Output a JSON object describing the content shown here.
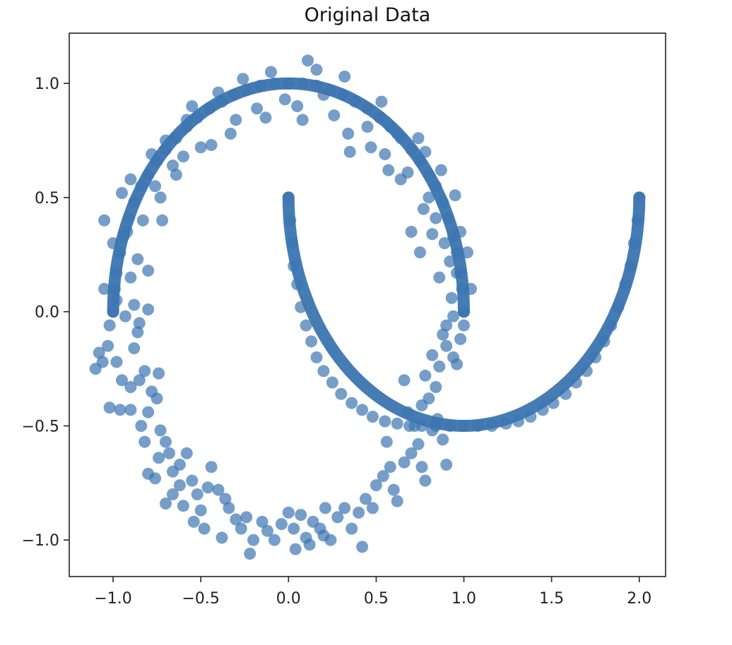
{
  "chart_data": {
    "type": "scatter",
    "title": "Original Data",
    "xlabel": "",
    "ylabel": "",
    "xlim": [
      -1.25,
      2.15
    ],
    "ylim": [
      -1.16,
      1.22
    ],
    "x_ticks": [
      -1.0,
      -0.5,
      0.0,
      0.5,
      1.0,
      1.5,
      2.0
    ],
    "y_ticks": [
      -1.0,
      -0.5,
      0.0,
      0.5,
      1.0
    ],
    "x_tick_labels": [
      "−1.0",
      "−0.5",
      "0.0",
      "0.5",
      "1.0",
      "1.5",
      "2.0"
    ],
    "y_tick_labels": [
      "−1.0",
      "−0.5",
      "0.0",
      "0.5",
      "1.0"
    ],
    "grid": false,
    "legend": "none",
    "point_color": "#3c75b0",
    "point_alpha": 0.7,
    "series": [
      {
        "description_of_points": "",
        "points": [
          [
            -1.0,
            0.0
          ],
          [
            -0.99,
            0.1
          ],
          [
            -0.98,
            0.17
          ],
          [
            -0.96,
            0.26
          ],
          [
            -0.94,
            0.33
          ],
          [
            -0.91,
            0.41
          ],
          [
            -0.88,
            0.48
          ],
          [
            -0.84,
            0.55
          ],
          [
            -0.8,
            0.6
          ],
          [
            -0.75,
            0.66
          ],
          [
            -0.7,
            0.71
          ],
          [
            -0.64,
            0.76
          ],
          [
            -0.58,
            0.81
          ],
          [
            -0.52,
            0.85
          ],
          [
            -0.45,
            0.89
          ],
          [
            -0.38,
            0.92
          ],
          [
            -0.31,
            0.95
          ],
          [
            -0.24,
            0.97
          ],
          [
            -0.16,
            0.99
          ],
          [
            -0.08,
            1.0
          ],
          [
            0.0,
            1.0
          ],
          [
            0.08,
            1.0
          ],
          [
            0.16,
            0.99
          ],
          [
            0.24,
            0.97
          ],
          [
            0.31,
            0.95
          ],
          [
            0.38,
            0.92
          ],
          [
            0.45,
            0.89
          ],
          [
            0.52,
            0.85
          ],
          [
            0.58,
            0.81
          ],
          [
            0.64,
            0.76
          ],
          [
            0.7,
            0.71
          ],
          [
            0.75,
            0.66
          ],
          [
            0.8,
            0.6
          ],
          [
            0.84,
            0.55
          ],
          [
            0.88,
            0.48
          ],
          [
            0.91,
            0.41
          ],
          [
            0.94,
            0.33
          ],
          [
            0.96,
            0.26
          ],
          [
            0.98,
            0.17
          ],
          [
            0.99,
            0.1
          ],
          [
            1.0,
            0.0
          ],
          [
            -1.05,
            0.4
          ],
          [
            -1.0,
            0.3
          ],
          [
            -0.95,
            0.52
          ],
          [
            -0.9,
            0.58
          ],
          [
            -0.83,
            0.4
          ],
          [
            -0.86,
            0.23
          ],
          [
            -0.8,
            0.18
          ],
          [
            -0.78,
            0.69
          ],
          [
            -0.72,
            0.4
          ],
          [
            -0.7,
            0.75
          ],
          [
            -0.66,
            0.64
          ],
          [
            -0.6,
            0.68
          ],
          [
            -0.55,
            0.9
          ],
          [
            -0.5,
            0.72
          ],
          [
            -0.44,
            0.73
          ],
          [
            -0.4,
            0.96
          ],
          [
            -0.33,
            0.78
          ],
          [
            -0.3,
            0.84
          ],
          [
            -0.26,
            1.02
          ],
          [
            -0.18,
            0.89
          ],
          [
            -0.13,
            0.85
          ],
          [
            -0.1,
            1.05
          ],
          [
            -0.02,
            0.93
          ],
          [
            0.05,
            0.9
          ],
          [
            0.08,
            0.84
          ],
          [
            0.11,
            1.1
          ],
          [
            0.16,
            1.06
          ],
          [
            0.2,
            0.95
          ],
          [
            0.26,
            0.86
          ],
          [
            0.32,
            1.03
          ],
          [
            0.34,
            0.78
          ],
          [
            0.35,
            0.7
          ],
          [
            0.45,
            0.81
          ],
          [
            0.47,
            0.72
          ],
          [
            0.53,
            0.92
          ],
          [
            0.55,
            0.69
          ],
          [
            0.57,
            0.62
          ],
          [
            0.62,
            0.78
          ],
          [
            0.64,
            0.58
          ],
          [
            0.68,
            0.61
          ],
          [
            0.74,
            0.76
          ],
          [
            0.78,
            0.7
          ],
          [
            0.8,
            0.5
          ],
          [
            0.84,
            0.41
          ],
          [
            0.87,
            0.62
          ],
          [
            0.89,
            0.3
          ],
          [
            0.92,
            0.22
          ],
          [
            0.95,
            0.51
          ],
          [
            0.93,
            0.06
          ],
          [
            0.96,
            0.17
          ],
          [
            0.98,
            0.35
          ],
          [
            1.02,
            0.26
          ],
          [
            1.04,
            0.1
          ],
          [
            0.94,
            -0.02
          ],
          [
            0.82,
            0.34
          ],
          [
            0.77,
            0.45
          ],
          [
            0.75,
            0.26
          ],
          [
            0.86,
            0.15
          ],
          [
            0.9,
            -0.06
          ],
          [
            0.7,
            0.35
          ],
          [
            -1.05,
            0.1
          ],
          [
            -0.98,
            0.05
          ],
          [
            -0.93,
            -0.02
          ],
          [
            -0.9,
            0.15
          ],
          [
            -0.88,
            0.03
          ],
          [
            -0.8,
            0.01
          ],
          [
            -0.85,
            -0.05
          ],
          [
            -0.92,
            0.35
          ],
          [
            -0.73,
            0.5
          ],
          [
            -0.76,
            0.55
          ],
          [
            -0.64,
            0.6
          ],
          [
            -0.58,
            0.84
          ],
          [
            -1.02,
            -0.06
          ],
          [
            -1.03,
            -0.15
          ],
          [
            -1.06,
            -0.22
          ],
          [
            -1.1,
            -0.25
          ],
          [
            -1.08,
            -0.18
          ],
          [
            -0.98,
            -0.22
          ],
          [
            -0.95,
            -0.3
          ],
          [
            -0.9,
            -0.33
          ],
          [
            -0.88,
            -0.16
          ],
          [
            -0.86,
            -0.09
          ],
          [
            -0.82,
            -0.26
          ],
          [
            -0.85,
            -0.3
          ],
          [
            -0.78,
            -0.35
          ],
          [
            -0.74,
            -0.27
          ],
          [
            -0.8,
            -0.44
          ],
          [
            -0.84,
            -0.5
          ],
          [
            -0.9,
            -0.43
          ],
          [
            -0.96,
            -0.43
          ],
          [
            -1.02,
            -0.42
          ],
          [
            -0.75,
            -0.38
          ],
          [
            -0.73,
            -0.52
          ],
          [
            -0.7,
            -0.57
          ],
          [
            -0.68,
            -0.62
          ],
          [
            -0.74,
            -0.64
          ],
          [
            -0.82,
            -0.57
          ],
          [
            -0.8,
            -0.71
          ],
          [
            -0.76,
            -0.73
          ],
          [
            -0.66,
            -0.7
          ],
          [
            -0.62,
            -0.67
          ],
          [
            -0.58,
            -0.62
          ],
          [
            -0.55,
            -0.74
          ],
          [
            -0.52,
            -0.8
          ],
          [
            -0.5,
            -0.87
          ],
          [
            -0.46,
            -0.77
          ],
          [
            -0.44,
            -0.68
          ],
          [
            -0.4,
            -0.78
          ],
          [
            -0.36,
            -0.82
          ],
          [
            -0.34,
            -0.86
          ],
          [
            -0.3,
            -0.91
          ],
          [
            -0.27,
            -0.95
          ],
          [
            -0.24,
            -0.9
          ],
          [
            -0.2,
            -1.0
          ],
          [
            -0.15,
            -0.92
          ],
          [
            -0.12,
            -0.96
          ],
          [
            -0.08,
            -1.0
          ],
          [
            -0.04,
            -0.93
          ],
          [
            0.0,
            -0.88
          ],
          [
            0.03,
            -0.95
          ],
          [
            0.07,
            -0.89
          ],
          [
            0.1,
            -0.99
          ],
          [
            0.14,
            -0.92
          ],
          [
            0.18,
            -0.95
          ],
          [
            0.21,
            -0.86
          ],
          [
            0.24,
            -1.0
          ],
          [
            0.28,
            -0.9
          ],
          [
            0.32,
            -0.86
          ],
          [
            0.36,
            -0.95
          ],
          [
            0.4,
            -0.88
          ],
          [
            0.42,
            -1.03
          ],
          [
            0.44,
            -0.82
          ],
          [
            0.48,
            -0.86
          ],
          [
            0.5,
            -0.76
          ],
          [
            0.54,
            -0.72
          ],
          [
            0.58,
            -0.68
          ],
          [
            0.6,
            -0.78
          ],
          [
            0.62,
            -0.83
          ],
          [
            0.66,
            -0.66
          ],
          [
            0.7,
            -0.62
          ],
          [
            0.74,
            -0.58
          ],
          [
            0.76,
            -0.68
          ],
          [
            0.78,
            -0.74
          ],
          [
            0.82,
            -0.52
          ],
          [
            0.85,
            -0.47
          ],
          [
            0.88,
            -0.56
          ],
          [
            0.9,
            -0.67
          ],
          [
            0.72,
            -0.5
          ],
          [
            0.68,
            -0.44
          ],
          [
            0.76,
            -0.41
          ],
          [
            0.8,
            -0.38
          ],
          [
            0.84,
            -0.33
          ],
          [
            0.86,
            -0.24
          ],
          [
            0.9,
            -0.15
          ],
          [
            0.94,
            -0.2
          ],
          [
            0.98,
            -0.12
          ],
          [
            1.0,
            -0.06
          ],
          [
            0.96,
            -0.23
          ],
          [
            0.88,
            -0.1
          ],
          [
            0.82,
            -0.19
          ],
          [
            0.78,
            -0.28
          ],
          [
            0.66,
            -0.3
          ],
          [
            -0.6,
            -0.85
          ],
          [
            -0.54,
            -0.92
          ],
          [
            -0.48,
            -0.95
          ],
          [
            -0.38,
            -0.99
          ],
          [
            -0.22,
            -1.06
          ],
          [
            0.04,
            -1.04
          ],
          [
            0.12,
            -1.02
          ],
          [
            0.2,
            -0.98
          ],
          [
            -0.66,
            -0.8
          ],
          [
            -0.7,
            -0.84
          ],
          [
            -0.62,
            -0.76
          ],
          [
            0.56,
            -0.57
          ]
        ]
      },
      {
        "description_of_points": "",
        "points": [
          [
            0.0,
            0.5
          ],
          [
            0.01,
            0.4
          ],
          [
            0.02,
            0.3
          ],
          [
            0.03,
            0.2
          ],
          [
            0.05,
            0.12
          ],
          [
            0.07,
            0.02
          ],
          [
            0.1,
            -0.06
          ],
          [
            0.13,
            -0.13
          ],
          [
            0.16,
            -0.2
          ],
          [
            0.2,
            -0.26
          ],
          [
            0.25,
            -0.31
          ],
          [
            0.3,
            -0.36
          ],
          [
            0.36,
            -0.4
          ],
          [
            0.42,
            -0.43
          ],
          [
            0.48,
            -0.46
          ],
          [
            0.55,
            -0.48
          ],
          [
            0.62,
            -0.49
          ],
          [
            0.69,
            -0.5
          ],
          [
            0.76,
            -0.5
          ],
          [
            0.84,
            -0.5
          ],
          [
            0.92,
            -0.5
          ],
          [
            1.0,
            -0.5
          ],
          [
            1.08,
            -0.5
          ],
          [
            1.16,
            -0.5
          ],
          [
            1.24,
            -0.49
          ],
          [
            1.31,
            -0.48
          ],
          [
            1.38,
            -0.46
          ],
          [
            1.45,
            -0.43
          ],
          [
            1.51,
            -0.4
          ],
          [
            1.58,
            -0.36
          ],
          [
            1.64,
            -0.31
          ],
          [
            1.7,
            -0.26
          ],
          [
            1.75,
            -0.2
          ],
          [
            1.8,
            -0.13
          ],
          [
            1.84,
            -0.06
          ],
          [
            1.88,
            0.02
          ],
          [
            1.92,
            0.12
          ],
          [
            1.95,
            0.2
          ],
          [
            1.97,
            0.3
          ],
          [
            1.99,
            0.4
          ],
          [
            2.0,
            0.5
          ]
        ]
      }
    ]
  }
}
